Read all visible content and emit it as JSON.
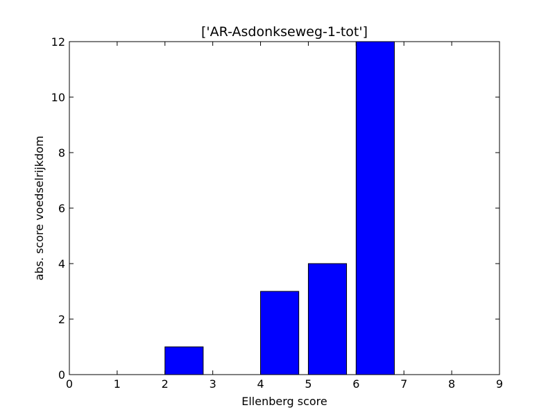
{
  "chart_data": {
    "type": "bar",
    "title": "['AR-Asdonkseweg-1-tot']",
    "xlabel": "Ellenberg score",
    "ylabel": "abs. score voedselrijkdom",
    "x": [
      1,
      2,
      3,
      4,
      5,
      6,
      7,
      8
    ],
    "values": [
      0,
      1,
      0,
      3,
      4,
      12,
      0,
      0
    ],
    "bar_width": 0.8,
    "xlim": [
      0,
      9
    ],
    "ylim": [
      0,
      12
    ],
    "xticks": [
      0,
      1,
      2,
      3,
      4,
      5,
      6,
      7,
      8,
      9
    ],
    "yticks": [
      0,
      2,
      4,
      6,
      8,
      10,
      12
    ],
    "grid": false,
    "legend": "none",
    "bar_color": "#0000ff",
    "edge_color": "#000000"
  }
}
